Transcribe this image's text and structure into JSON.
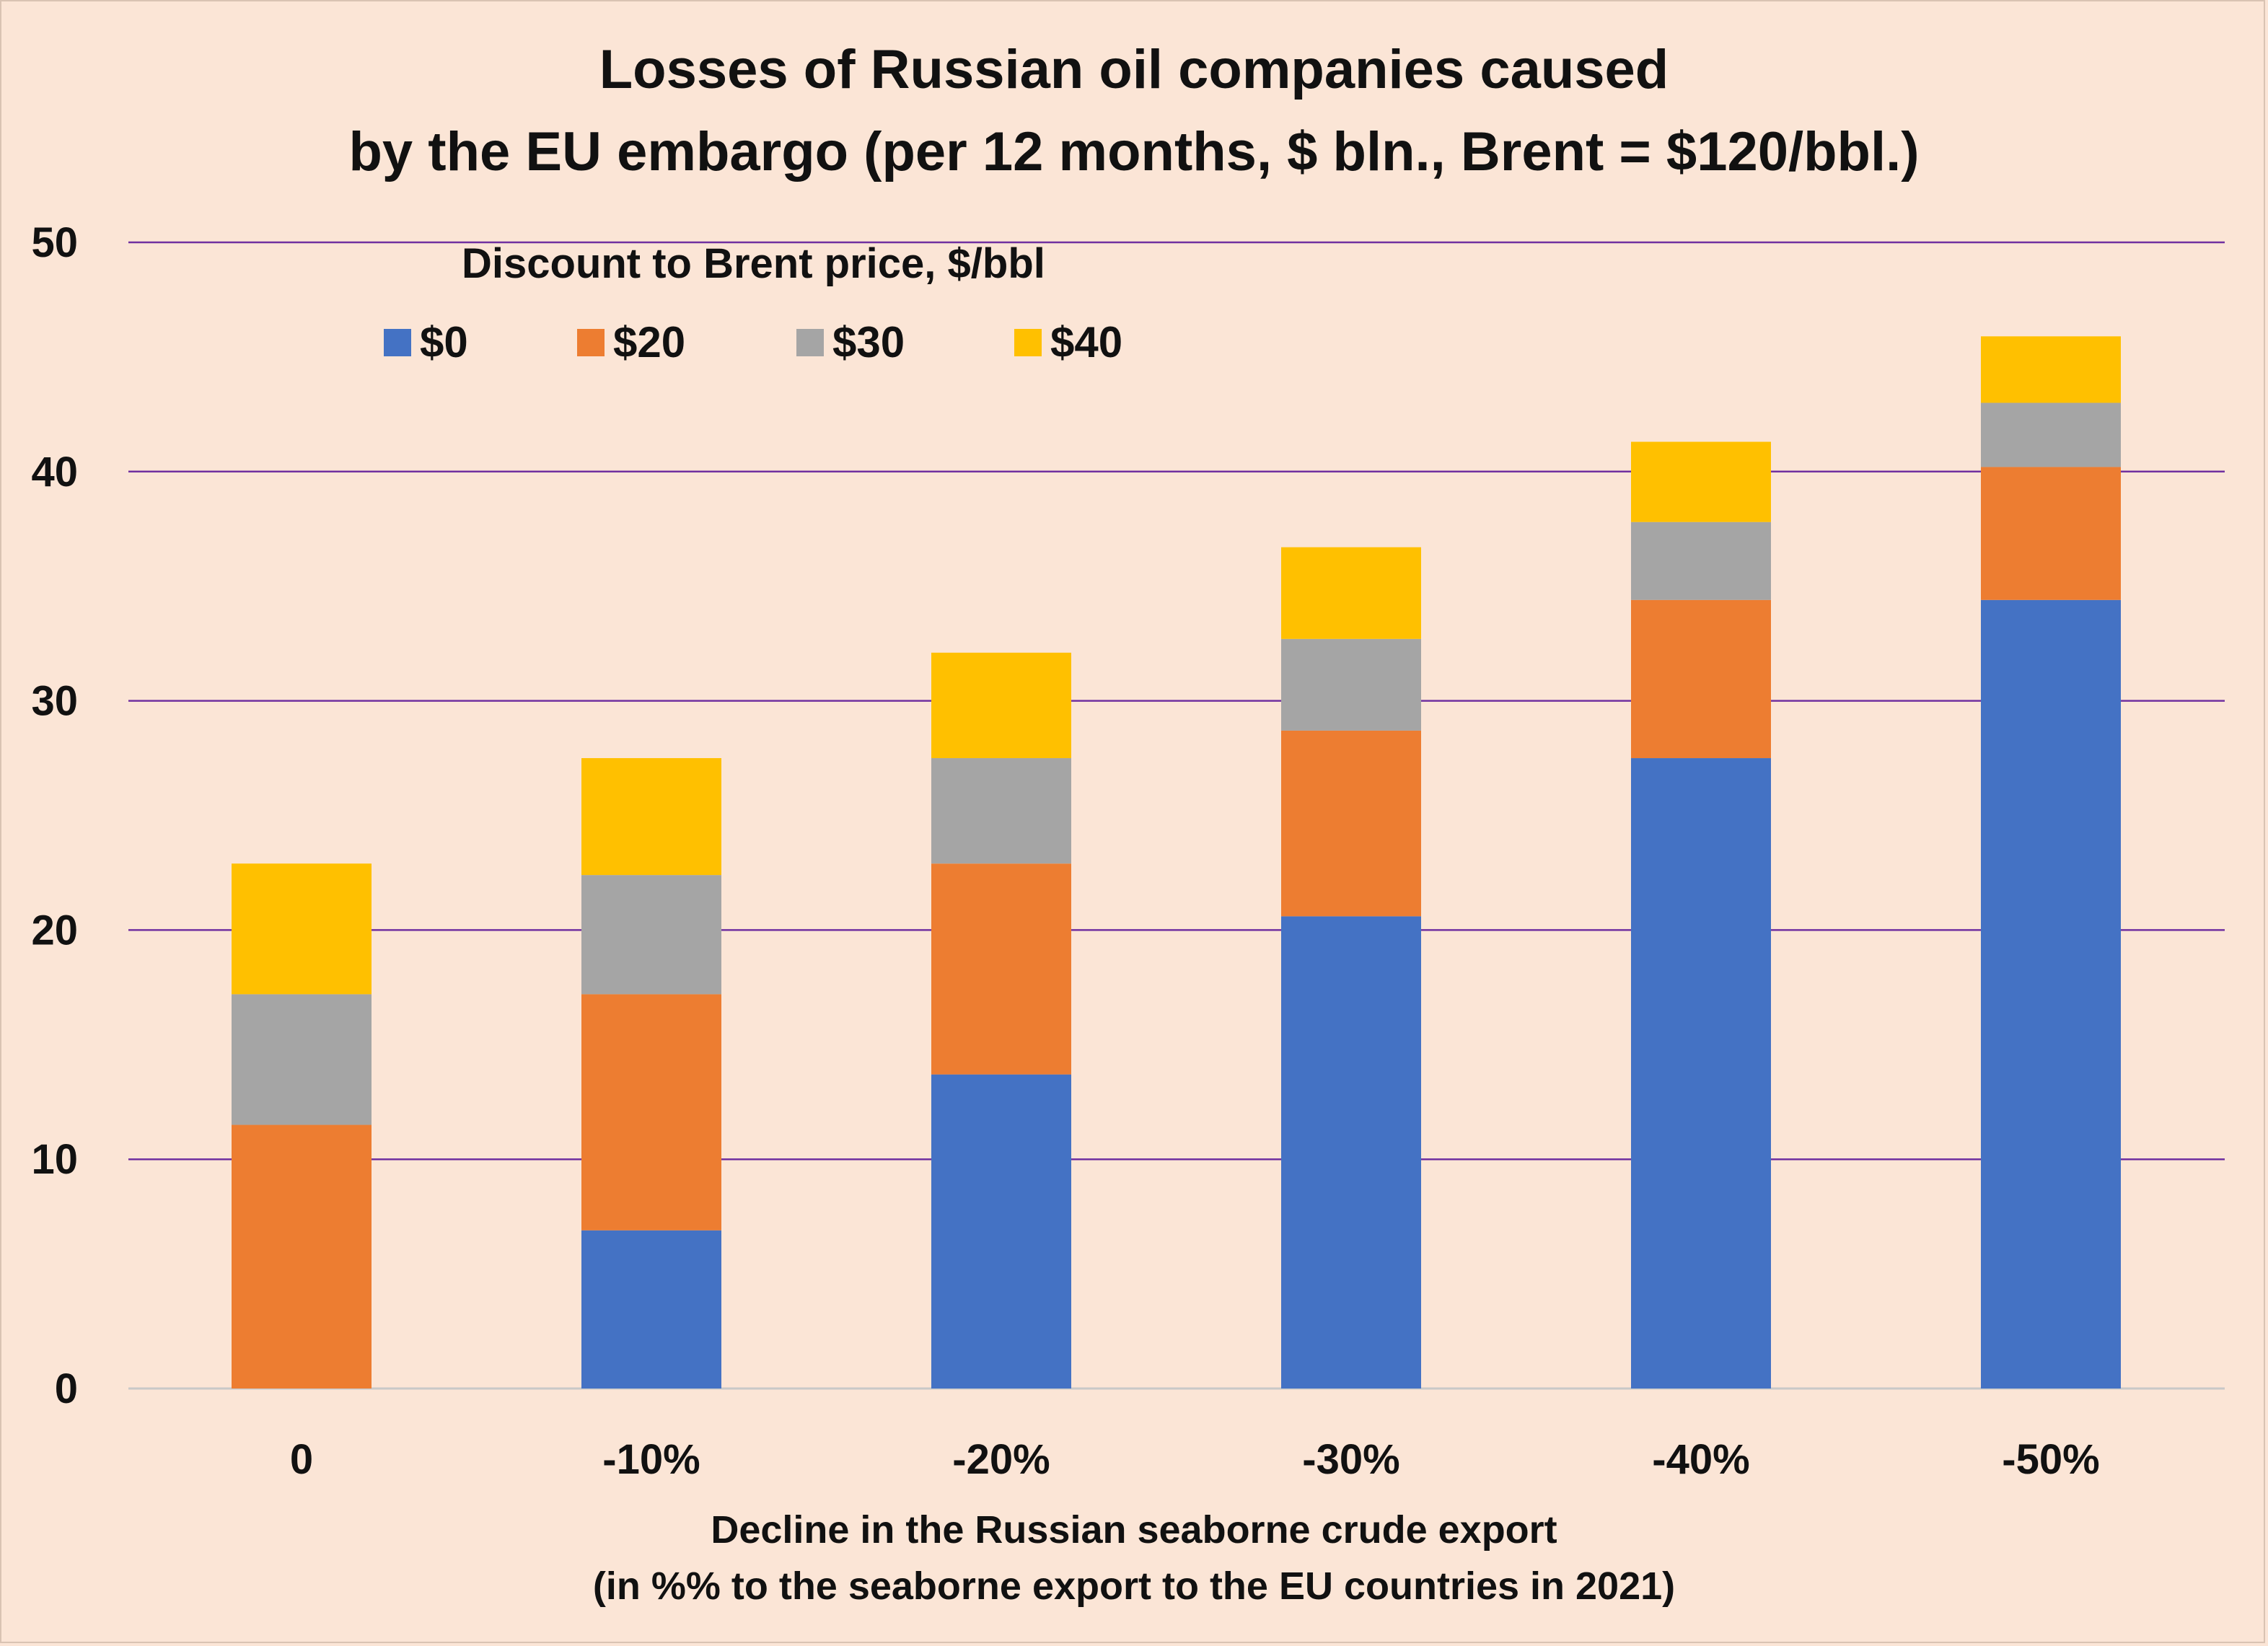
{
  "chart_data": {
    "type": "bar",
    "stacked": true,
    "title_lines": [
      "Losses of Russian oil companies caused",
      "by the EU embargo (per 12 months, $ bln., Brent = $120/bbl.)"
    ],
    "xlabel_lines": [
      "Decline in the Russian seaborne crude export",
      "(in %% to the seaborne export to the EU countries in 2021)"
    ],
    "ylabel": "",
    "ylim": [
      0,
      50
    ],
    "yticks": [
      0,
      10,
      20,
      30,
      40,
      50
    ],
    "grid": true,
    "legend_title": "Discount to Brent price, $/bbl",
    "legend_position": "top-left",
    "categories": [
      "0",
      "-10%",
      "-20%",
      "-30%",
      "-40%",
      "-50%"
    ],
    "series": [
      {
        "name": "$0",
        "color": "#4472c4",
        "values": [
          0,
          6.9,
          13.7,
          20.6,
          27.5,
          34.4
        ]
      },
      {
        "name": "$20",
        "color": "#ed7d31",
        "values": [
          11.5,
          10.3,
          9.2,
          8.1,
          6.9,
          5.8
        ]
      },
      {
        "name": "$30",
        "color": "#a5a5a5",
        "values": [
          5.7,
          5.2,
          4.6,
          4.0,
          3.4,
          2.8
        ]
      },
      {
        "name": "$40",
        "color": "#ffc000",
        "values": [
          5.7,
          5.1,
          4.6,
          4.0,
          3.5,
          2.9
        ]
      }
    ]
  }
}
